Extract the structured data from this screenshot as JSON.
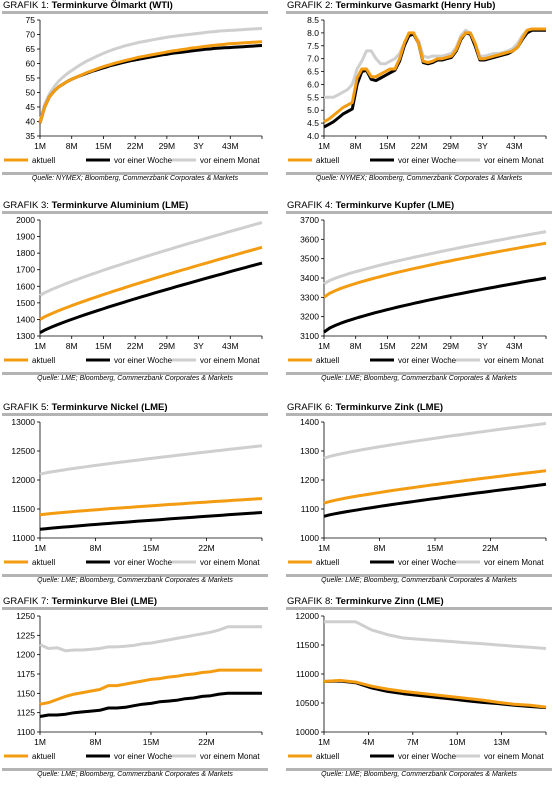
{
  "colors": {
    "aktuell": "#f39c12",
    "vor_einer_woche": "#000000",
    "vor_einem_monat": "#cfcfcf"
  },
  "legend_labels": [
    "aktuell",
    "vor einer Woche",
    "vor einem Monat"
  ],
  "chart_data": [
    {
      "type": "line",
      "prefix": "GRAFIK 1:",
      "title": "Terminkurve Ölmarkt (WTI)",
      "source": "Quelle: NYMEX; Bloomberg, Commerzbank Corporates & Markets",
      "ylim": [
        35,
        75
      ],
      "yticks": [
        35,
        40,
        45,
        50,
        55,
        60,
        65,
        70,
        75
      ],
      "xlim": [
        0,
        48
      ],
      "xticks": [
        "1M",
        "8M",
        "15M",
        "22M",
        "29M",
        "3Y",
        "43M"
      ],
      "series": [
        {
          "name": "aktuell",
          "color": "#f39c12",
          "y": [
            39.5,
            45,
            48.5,
            50.5,
            52,
            53,
            54,
            54.8,
            55.5,
            56.2,
            56.9,
            57.5,
            58.1,
            58.7,
            59.2,
            59.7,
            60.2,
            60.6,
            61,
            61.4,
            61.8,
            62.2,
            62.5,
            62.8,
            63.1,
            63.4,
            63.7,
            64,
            64.3,
            64.5,
            64.8,
            65,
            65.3,
            65.5,
            65.7,
            65.9,
            66.1,
            66.3,
            66.5,
            66.6,
            66.8,
            66.9,
            67,
            67.1,
            67.2,
            67.3,
            67.4,
            67.5
          ]
        },
        {
          "name": "vor einer Woche",
          "color": "#000000",
          "y": [
            39.5,
            45,
            48.5,
            50.5,
            52,
            53,
            54,
            54.8,
            55.5,
            56.1,
            56.7,
            57.3,
            57.8,
            58.3,
            58.8,
            59.3,
            59.7,
            60.1,
            60.5,
            60.9,
            61.2,
            61.5,
            61.8,
            62.1,
            62.4,
            62.7,
            63,
            63.2,
            63.5,
            63.7,
            63.9,
            64.1,
            64.3,
            64.5,
            64.7,
            64.9,
            65,
            65.2,
            65.3,
            65.4,
            65.5,
            65.6,
            65.7,
            65.8,
            65.9,
            66,
            66.1,
            66.2
          ]
        },
        {
          "name": "vor einem Monat",
          "color": "#cfcfcf",
          "y": [
            40,
            46,
            49.5,
            52,
            54,
            55.5,
            56.8,
            57.9,
            59,
            60,
            60.9,
            61.7,
            62.5,
            63.2,
            63.9,
            64.5,
            65.1,
            65.6,
            66.1,
            66.5,
            66.9,
            67.3,
            67.6,
            67.9,
            68.2,
            68.5,
            68.8,
            69.1,
            69.3,
            69.5,
            69.7,
            69.9,
            70.1,
            70.3,
            70.5,
            70.7,
            70.9,
            71,
            71.2,
            71.3,
            71.4,
            71.5,
            71.6,
            71.7,
            71.8,
            71.9,
            72,
            72.1
          ]
        }
      ]
    },
    {
      "type": "line",
      "prefix": "GRAFIK 2:",
      "title": "Terminkurve Gasmarkt (Henry Hub)",
      "source": "Quelle: NYMEX; Bloomberg, Commerzbank Corporates & Markets",
      "ylim": [
        4,
        8.5
      ],
      "yticks": [
        4.0,
        4.5,
        5.0,
        5.5,
        6.0,
        6.5,
        7.0,
        7.5,
        8.0,
        8.5
      ],
      "ydec": 1,
      "xlim": [
        0,
        48
      ],
      "xticks": [
        "1M",
        "8M",
        "15M",
        "22M",
        "29M",
        "3Y",
        "43M"
      ],
      "series": [
        {
          "name": "aktuell",
          "color": "#f39c12",
          "y": [
            4.55,
            4.65,
            4.8,
            4.95,
            5.1,
            5.2,
            5.3,
            6.25,
            6.6,
            6.6,
            6.3,
            6.3,
            6.4,
            6.5,
            6.6,
            6.6,
            7,
            7.6,
            8.0,
            8.0,
            7.6,
            6.9,
            6.85,
            6.9,
            7.0,
            7.0,
            7.05,
            7.1,
            7.35,
            7.8,
            8.0,
            8.0,
            7.6,
            7.0,
            7.0,
            7.05,
            7.1,
            7.15,
            7.2,
            7.25,
            7.3,
            7.45,
            7.8,
            8.1,
            8.15,
            8.15,
            8.15,
            8.15
          ]
        },
        {
          "name": "vor einer Woche",
          "color": "#000000",
          "y": [
            4.35,
            4.45,
            4.55,
            4.7,
            4.85,
            4.95,
            5.05,
            6.0,
            6.5,
            6.55,
            6.2,
            6.15,
            6.25,
            6.35,
            6.45,
            6.55,
            6.9,
            7.5,
            7.9,
            7.95,
            7.6,
            6.85,
            6.8,
            6.85,
            6.95,
            6.95,
            7.0,
            7.05,
            7.3,
            7.75,
            8.0,
            7.95,
            7.5,
            6.95,
            6.95,
            7.0,
            7.05,
            7.1,
            7.15,
            7.2,
            7.3,
            7.45,
            7.75,
            8.0,
            8.1,
            8.1,
            8.1,
            8.1
          ]
        },
        {
          "name": "vor einem Monat",
          "color": "#cfcfcf",
          "y": [
            5.5,
            5.5,
            5.5,
            5.6,
            5.7,
            5.8,
            6.0,
            6.6,
            6.9,
            7.3,
            7.3,
            7.0,
            6.8,
            6.8,
            6.9,
            7.0,
            7.2,
            7.6,
            7.95,
            7.95,
            7.7,
            7.1,
            7.05,
            7.1,
            7.1,
            7.1,
            7.15,
            7.2,
            7.45,
            7.9,
            8.1,
            8.0,
            7.6,
            7.1,
            7.1,
            7.15,
            7.2,
            7.2,
            7.25,
            7.3,
            7.4,
            7.6,
            7.9,
            8.1,
            8.15,
            8.15,
            8.15,
            8.15
          ]
        }
      ]
    },
    {
      "type": "line",
      "prefix": "GRAFIK 3:",
      "title": "Terminkurve Aluminium (LME)",
      "source": "Quelle: LME; Bloomberg, Commerzbank Corporates & Markets",
      "ylim": [
        1300,
        2000
      ],
      "yticks": [
        1300,
        1400,
        1500,
        1600,
        1700,
        1800,
        1900,
        2000
      ],
      "xlim": [
        0,
        48
      ],
      "xticks": [
        "1M",
        "8M",
        "15M",
        "22M",
        "29M",
        "3Y",
        "43M"
      ],
      "series": [
        {
          "name": "aktuell",
          "color": "#f39c12",
          "y": [
            1400,
            1835
          ],
          "curve": 0.85
        },
        {
          "name": "vor einer Woche",
          "color": "#000000",
          "y": [
            1320,
            1740
          ],
          "curve": 0.85
        },
        {
          "name": "vor einem Monat",
          "color": "#cfcfcf",
          "y": [
            1545,
            1985
          ],
          "curve": 0.85
        }
      ]
    },
    {
      "type": "line",
      "prefix": "GRAFIK 4:",
      "title": "Terminkurve Kupfer (LME)",
      "source": "Quelle: LME; Bloomberg, Commerzbank Corporates & Markets",
      "ylim": [
        3100,
        3700
      ],
      "yticks": [
        3100,
        3200,
        3300,
        3400,
        3500,
        3600,
        3700
      ],
      "xlim": [
        0,
        48
      ],
      "xticks": [
        "1M",
        "8M",
        "15M",
        "22M",
        "29M",
        "3Y",
        "43M"
      ],
      "series": [
        {
          "name": "aktuell",
          "color": "#f39c12",
          "y": [
            3300,
            3580
          ],
          "curve": 0.7
        },
        {
          "name": "vor einer Woche",
          "color": "#000000",
          "y": [
            3120,
            3400
          ],
          "curve": 0.7
        },
        {
          "name": "vor einem Monat",
          "color": "#cfcfcf",
          "y": [
            3370,
            3640
          ],
          "curve": 0.75
        }
      ]
    },
    {
      "type": "line",
      "prefix": "GRAFIK 5:",
      "title": "Terminkurve Nickel (LME)",
      "source": "Quelle: LME; Bloomberg, Commerzbank Corporates & Markets",
      "ylim": [
        11000,
        13000
      ],
      "yticks": [
        11000,
        11500,
        12000,
        12500,
        13000
      ],
      "xlim": [
        0,
        27
      ],
      "xticks": [
        "1M",
        "8M",
        "15M",
        "22M"
      ],
      "series": [
        {
          "name": "aktuell",
          "color": "#f39c12",
          "y": [
            11400,
            11680
          ],
          "curve": 0.85
        },
        {
          "name": "vor einer Woche",
          "color": "#000000",
          "y": [
            11150,
            11440
          ],
          "curve": 0.9
        },
        {
          "name": "vor einem Monat",
          "color": "#cfcfcf",
          "y": [
            12100,
            12590
          ],
          "curve": 0.85
        }
      ]
    },
    {
      "type": "line",
      "prefix": "GRAFIK 6:",
      "title": "Terminkurve Zink (LME)",
      "source": "Quelle: LME; Bloomberg, Commerzbank Corporates & Markets",
      "ylim": [
        1000,
        1400
      ],
      "yticks": [
        1000,
        1100,
        1200,
        1300,
        1400
      ],
      "xlim": [
        0,
        27
      ],
      "xticks": [
        "1M",
        "8M",
        "15M",
        "22M"
      ],
      "series": [
        {
          "name": "aktuell",
          "color": "#f39c12",
          "y": [
            1120,
            1232
          ],
          "curve": 0.8
        },
        {
          "name": "vor einer Woche",
          "color": "#000000",
          "y": [
            1075,
            1185
          ],
          "curve": 0.85
        },
        {
          "name": "vor einem Monat",
          "color": "#cfcfcf",
          "y": [
            1275,
            1395
          ],
          "curve": 0.8
        }
      ]
    },
    {
      "type": "line",
      "prefix": "GRAFIK 7:",
      "title": "Terminkurve Blei (LME)",
      "source": "Quelle: LME; Bloomberg, Commerzbank Corporates & Markets",
      "ylim": [
        1100,
        1250
      ],
      "yticks": [
        1100,
        1125,
        1150,
        1175,
        1200,
        1225,
        1250
      ],
      "xlim": [
        0,
        27
      ],
      "xticks": [
        "1M",
        "8M",
        "15M",
        "22M"
      ],
      "series": [
        {
          "name": "aktuell",
          "color": "#f39c12",
          "y": [
            1136,
            1138,
            1142,
            1146,
            1149,
            1151,
            1153,
            1155,
            1160,
            1160,
            1162,
            1164,
            1166,
            1168,
            1169,
            1171,
            1172,
            1174,
            1175,
            1177,
            1178,
            1180,
            1180,
            1180,
            1180,
            1180,
            1180
          ]
        },
        {
          "name": "vor einer Woche",
          "color": "#000000",
          "y": [
            1120,
            1122,
            1122,
            1123,
            1125,
            1126,
            1127,
            1128,
            1131,
            1131,
            1132,
            1134,
            1136,
            1137,
            1139,
            1140,
            1141,
            1143,
            1144,
            1146,
            1147,
            1149,
            1150,
            1150,
            1150,
            1150,
            1150
          ]
        },
        {
          "name": "vor einem Monat",
          "color": "#cfcfcf",
          "y": [
            1213,
            1208,
            1209,
            1205,
            1206,
            1206,
            1207,
            1208,
            1210,
            1210,
            1211,
            1212,
            1214,
            1215,
            1217,
            1219,
            1221,
            1223,
            1225,
            1227,
            1229,
            1232,
            1236,
            1236,
            1236,
            1236,
            1236
          ]
        }
      ]
    },
    {
      "type": "line",
      "prefix": "GRAFIK 8:",
      "title": "Terminkurve Zinn (LME)",
      "source": "Quelle: LME; Bloomberg, Commerzbank Corporates & Markets",
      "ylim": [
        10000,
        12000
      ],
      "yticks": [
        10000,
        10500,
        11000,
        11500,
        12000
      ],
      "xlim": [
        0,
        15
      ],
      "xticks": [
        "1M",
        "4M",
        "7M",
        "10M",
        "13M"
      ],
      "series": [
        {
          "name": "aktuell",
          "color": "#f39c12",
          "y": [
            10870,
            10890,
            10860,
            10790,
            10740,
            10700,
            10670,
            10640,
            10610,
            10580,
            10550,
            10510,
            10480,
            10460,
            10430
          ]
        },
        {
          "name": "vor einer Woche",
          "color": "#000000",
          "y": [
            10870,
            10880,
            10850,
            10760,
            10700,
            10660,
            10630,
            10600,
            10570,
            10540,
            10510,
            10490,
            10460,
            10440,
            10420
          ]
        },
        {
          "name": "vor einem Monat",
          "color": "#cfcfcf",
          "y": [
            11900,
            11900,
            11900,
            11760,
            11680,
            11620,
            11600,
            11580,
            11560,
            11540,
            11520,
            11500,
            11480,
            11460,
            11440
          ]
        }
      ]
    }
  ]
}
